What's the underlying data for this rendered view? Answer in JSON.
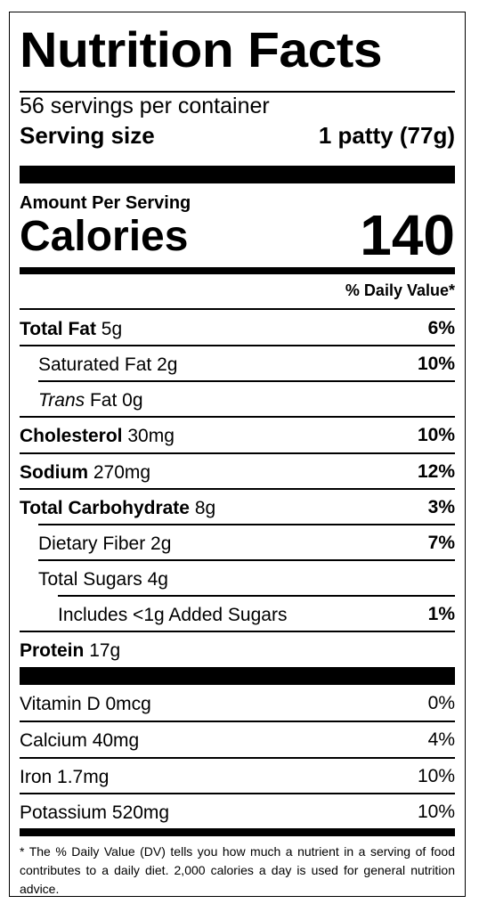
{
  "title": "Nutrition Facts",
  "servings": "56 servings per container",
  "serving_size_label": "Serving size",
  "serving_size_value": "1 patty (77g)",
  "amount_per_serving": "Amount Per Serving",
  "calories_label": "Calories",
  "calories_value": "140",
  "daily_value_header": "% Daily Value*",
  "nutrients": [
    {
      "name": "Total Fat",
      "amount": "5g",
      "dv": "6%"
    },
    {
      "name": "Saturated Fat",
      "amount": "2g",
      "dv": "10%"
    },
    {
      "name": "Trans",
      "name_rest": "Fat",
      "amount": "0g"
    },
    {
      "name": "Cholesterol",
      "amount": "30mg",
      "dv": "10%"
    },
    {
      "name": "Sodium",
      "amount": "270mg",
      "dv": "12%"
    },
    {
      "name": "Total Carbohydrate",
      "amount": "8g",
      "dv": "3%"
    },
    {
      "name": "Dietary Fiber",
      "amount": "2g",
      "dv": "7%"
    },
    {
      "name": "Total Sugars",
      "amount": "4g"
    },
    {
      "name": "Includes <1g Added Sugars",
      "dv": "1%"
    },
    {
      "name": "Protein",
      "amount": "17g"
    }
  ],
  "vitamins": [
    {
      "name": "Vitamin D",
      "amount": "0mcg",
      "dv": "0%"
    },
    {
      "name": "Calcium",
      "amount": "40mg",
      "dv": "4%"
    },
    {
      "name": "Iron",
      "amount": "1.7mg",
      "dv": "10%"
    },
    {
      "name": "Potassium",
      "amount": "520mg",
      "dv": "10%"
    }
  ],
  "footnote": "* The % Daily Value (DV) tells you how much a nutrient in a serving of food contributes to a daily diet. 2,000 calories a day is used for general nutrition advice."
}
